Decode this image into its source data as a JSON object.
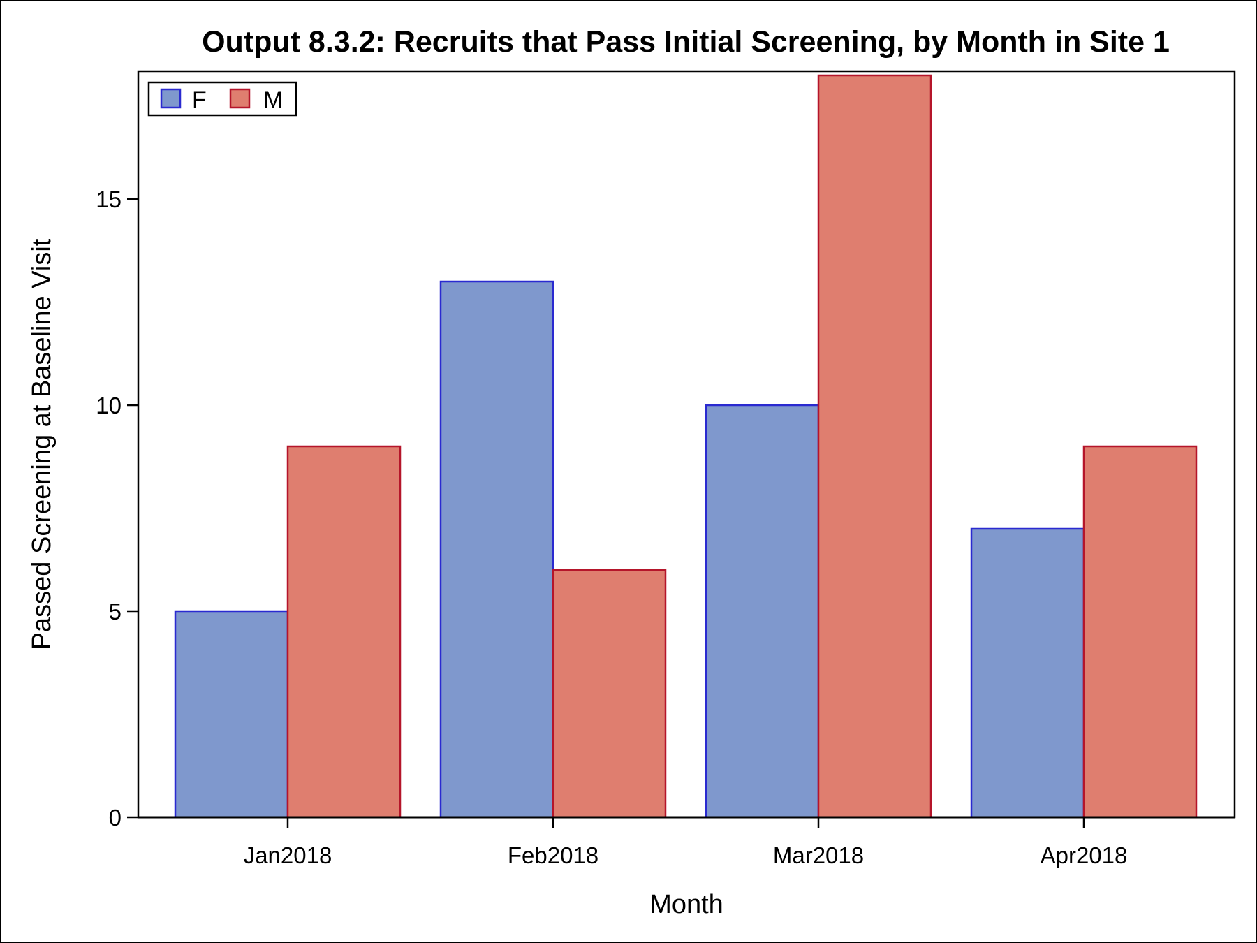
{
  "chart_data": {
    "type": "bar",
    "title": "Output 8.3.2: Recruits that Pass Initial Screening, by Month in Site 1",
    "xlabel": "Month",
    "ylabel": "Passed Screening at Baseline Visit",
    "categories": [
      "Jan2018",
      "Feb2018",
      "Mar2018",
      "Apr2018"
    ],
    "series": [
      {
        "name": "F",
        "values": [
          5,
          13,
          10,
          7
        ],
        "fill": "#7f98cd",
        "stroke": "#2a2ad0"
      },
      {
        "name": "M",
        "values": [
          9,
          6,
          18,
          9
        ],
        "fill": "#df7e6f",
        "stroke": "#b5152a"
      }
    ],
    "ylim": [
      0,
      18
    ],
    "yticks": [
      0,
      5,
      10,
      15
    ],
    "ytick_labels": [
      "0",
      "5",
      "10",
      "15"
    ],
    "grid": false,
    "legend_position": "top-left"
  }
}
